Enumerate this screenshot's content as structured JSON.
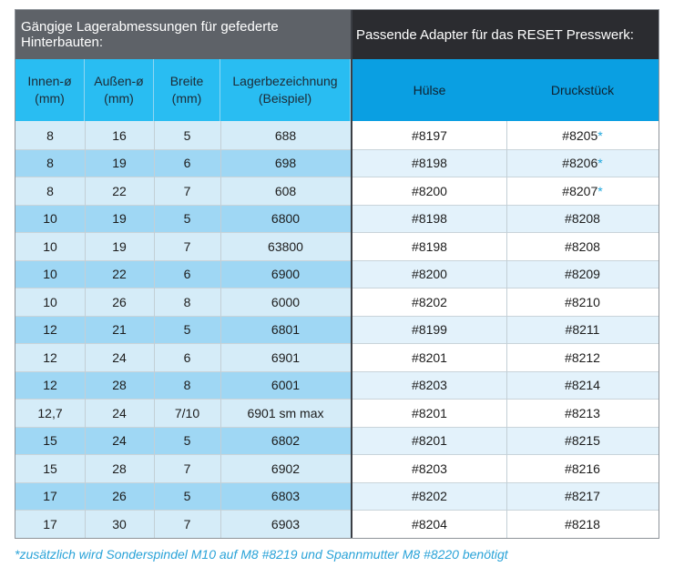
{
  "table": {
    "group_left": "Gängige Lagerabmessungen für gefederte Hinterbauten:",
    "group_right": "Passende Adapter für das RESET Presswerk:",
    "columns": [
      "Innen-ø (mm)",
      "Außen-ø (mm)",
      "Breite (mm)",
      "Lagerbezeichnung (Beispiel)",
      "Hülse",
      "Druckstück"
    ],
    "rows": [
      [
        "8",
        "16",
        "5",
        "688",
        "#8197",
        "#8205",
        "*"
      ],
      [
        "8",
        "19",
        "6",
        "698",
        "#8198",
        "#8206",
        "*"
      ],
      [
        "8",
        "22",
        "7",
        "608",
        "#8200",
        "#8207",
        "*"
      ],
      [
        "10",
        "19",
        "5",
        "6800",
        "#8198",
        "#8208",
        ""
      ],
      [
        "10",
        "19",
        "7",
        "63800",
        "#8198",
        "#8208",
        ""
      ],
      [
        "10",
        "22",
        "6",
        "6900",
        "#8200",
        "#8209",
        ""
      ],
      [
        "10",
        "26",
        "8",
        "6000",
        "#8202",
        "#8210",
        ""
      ],
      [
        "12",
        "21",
        "5",
        "6801",
        "#8199",
        "#8211",
        ""
      ],
      [
        "12",
        "24",
        "6",
        "6901",
        "#8201",
        "#8212",
        ""
      ],
      [
        "12",
        "28",
        "8",
        "6001",
        "#8203",
        "#8214",
        ""
      ],
      [
        "12,7",
        "24",
        "7/10",
        "6901 sm max",
        "#8201",
        "#8213",
        ""
      ],
      [
        "15",
        "24",
        "5",
        "6802",
        "#8201",
        "#8215",
        ""
      ],
      [
        "15",
        "28",
        "7",
        "6902",
        "#8203",
        "#8216",
        ""
      ],
      [
        "17",
        "26",
        "5",
        "6803",
        "#8202",
        "#8217",
        ""
      ],
      [
        "17",
        "30",
        "7",
        "6903",
        "#8204",
        "#8218",
        ""
      ]
    ]
  },
  "footnote": "*zusätzlich wird Sonderspindel M10 auf M8 #8219 und Spannmutter M8 #8220 benötigt",
  "colors": {
    "left_row_light": "#d5ecf8",
    "left_row_dark": "#9fd7f4",
    "right_row_light": "#ffffff",
    "right_row_dark": "#e3f2fb"
  }
}
